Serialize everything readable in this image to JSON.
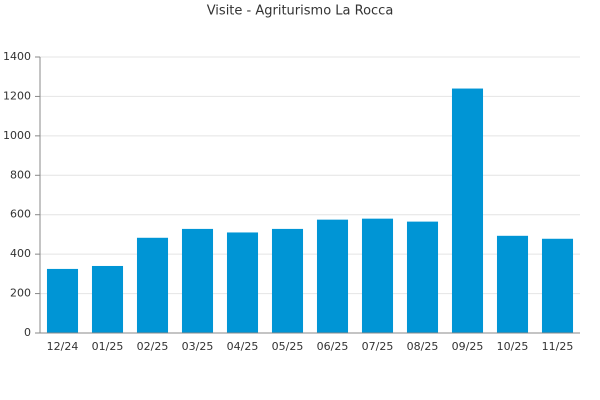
{
  "chart_data": {
    "type": "bar",
    "title": "Visite - Agriturismo La Rocca",
    "categories": [
      "12/24",
      "01/25",
      "02/25",
      "03/25",
      "04/25",
      "05/25",
      "06/25",
      "07/25",
      "08/25",
      "09/25",
      "10/25",
      "11/25"
    ],
    "values": [
      325,
      340,
      483,
      528,
      510,
      528,
      575,
      580,
      565,
      1240,
      493,
      478
    ],
    "color": "#0095d5",
    "ylim": [
      0,
      1400
    ],
    "yticks": [
      0,
      200,
      400,
      600,
      800,
      1000,
      1200,
      1400
    ],
    "grid": true
  }
}
